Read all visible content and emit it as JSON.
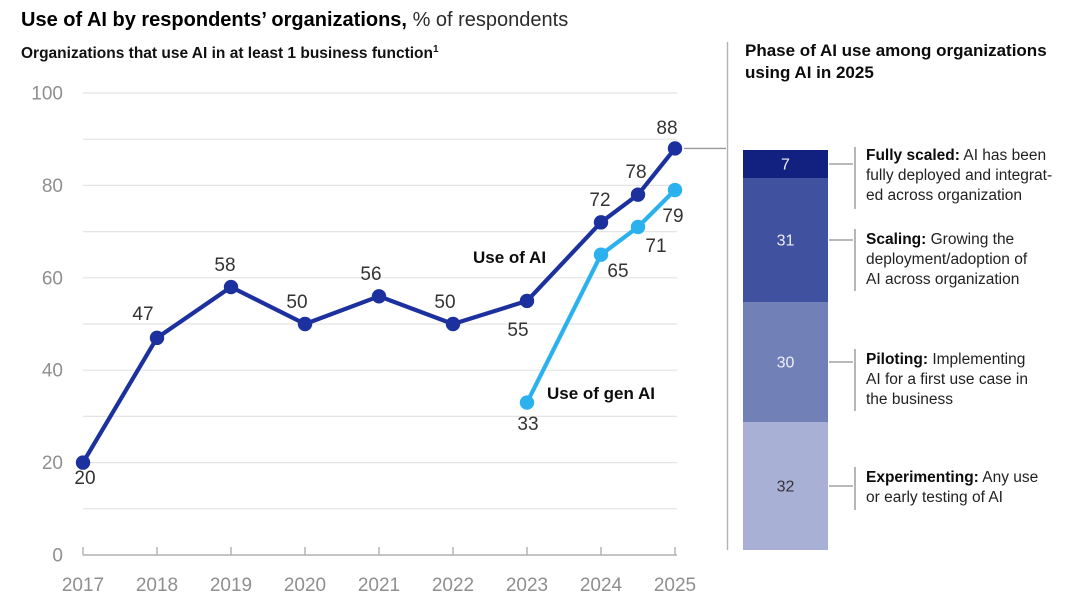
{
  "header": {
    "title_bold": "Use of AI by respondents’ organizations,",
    "title_suffix": "% of respondents"
  },
  "chart_data": [
    {
      "type": "line",
      "title": "Organizations that use AI in at least 1 business function",
      "footnote_marker": "1",
      "xlabel": "",
      "ylabel": "",
      "x_tick_labels": [
        "2017",
        "2018",
        "2019",
        "2020",
        "2021",
        "2022",
        "2023",
        "2024",
        "2025"
      ],
      "y_tick_labels": [
        "0",
        "20",
        "40",
        "60",
        "80",
        "100"
      ],
      "ylim": [
        0,
        100
      ],
      "grid_step": 10,
      "legend_position": "inline-labels",
      "series": [
        {
          "name": "Use of AI",
          "color": "#1c319e",
          "x": [
            2017,
            2018,
            2019,
            2020,
            2021,
            2022,
            2023,
            2024,
            2024.5,
            2025
          ],
          "values": [
            20,
            47,
            58,
            50,
            56,
            50,
            55,
            72,
            78,
            88
          ]
        },
        {
          "name": "Use of gen AI",
          "color": "#2bb1ee",
          "x": [
            2023,
            2024,
            2024.5,
            2025
          ],
          "values": [
            33,
            65,
            71,
            79
          ]
        }
      ]
    },
    {
      "type": "bar",
      "stacked": true,
      "title": "Phase of AI use among organizations using AI in 2025",
      "total": 100,
      "segments": [
        {
          "term": "Fully scaled:",
          "value": 7,
          "color": "#12217f",
          "lines": [
            "AI has been",
            "fully deployed and integrat-",
            "ed across organization"
          ]
        },
        {
          "term": "Scaling:",
          "value": 31,
          "color": "#40519f",
          "lines": [
            "Growing the",
            "deployment/adoption of",
            "AI across organization"
          ]
        },
        {
          "term": "Piloting:",
          "value": 30,
          "color": "#7280b8",
          "lines": [
            "Implementing",
            "AI for a first use case in",
            "the business"
          ]
        },
        {
          "term": "Experimenting:",
          "value": 32,
          "color": "#a9b0d6",
          "lines": [
            "Any use",
            "or early testing of AI"
          ]
        }
      ]
    }
  ],
  "colors": {
    "grid": "#e4e4e4",
    "axis": "#b0b0b0",
    "axis_text": "#8f8f8f",
    "data_label": "#333333",
    "connector": "#8f8f8f",
    "divider": "#b3b3b3",
    "leader": "#999999"
  }
}
